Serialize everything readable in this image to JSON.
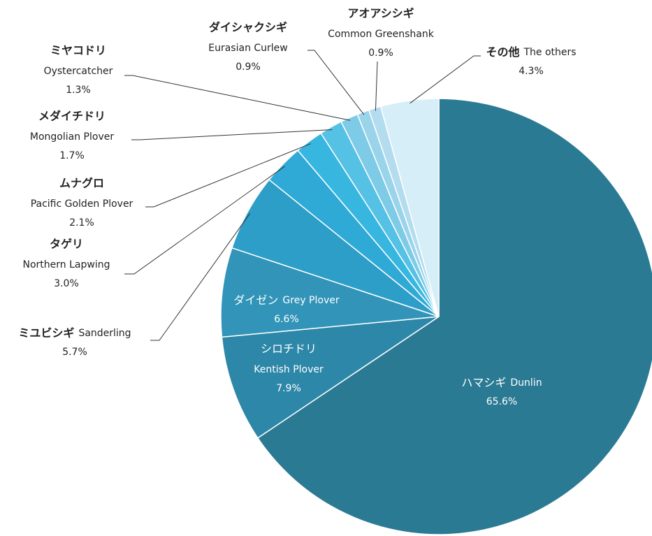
{
  "chart_data": {
    "type": "pie",
    "categories_ja": [
      "ハマシギ",
      "シロチドリ",
      "ダイゼン",
      "ミユビシギ",
      "タゲリ",
      "ムナグロ",
      "メダイチドリ",
      "ミヤコドリ",
      "ダイシャクシギ",
      "アオアシシギ",
      "その他"
    ],
    "categories": [
      "Dunlin",
      "Kentish Plover",
      "Grey Plover",
      "Sanderling",
      "Northern Lapwing",
      "Pacific Golden Plover",
      "Mongolian Plover",
      "Oystercatcher",
      "Eurasian Curlew",
      "Common Greenshank",
      "The others"
    ],
    "values": [
      65.6,
      7.9,
      6.6,
      5.7,
      3.0,
      2.1,
      1.7,
      1.3,
      0.9,
      0.9,
      4.3
    ],
    "value_labels": [
      "65.6%",
      "7.9%",
      "6.6%",
      "5.7%",
      "3.0%",
      "2.1%",
      "1.7%",
      "1.3%",
      "0.9%",
      "0.9%",
      "4.3%"
    ],
    "colors": [
      "#2b7a93",
      "#2d87a8",
      "#3194b8",
      "#2c9ec7",
      "#2fa9d6",
      "#37b7e0",
      "#55c1e5",
      "#7dcbe7",
      "#9ad4ea",
      "#b3ddee",
      "#d6eef7"
    ]
  }
}
